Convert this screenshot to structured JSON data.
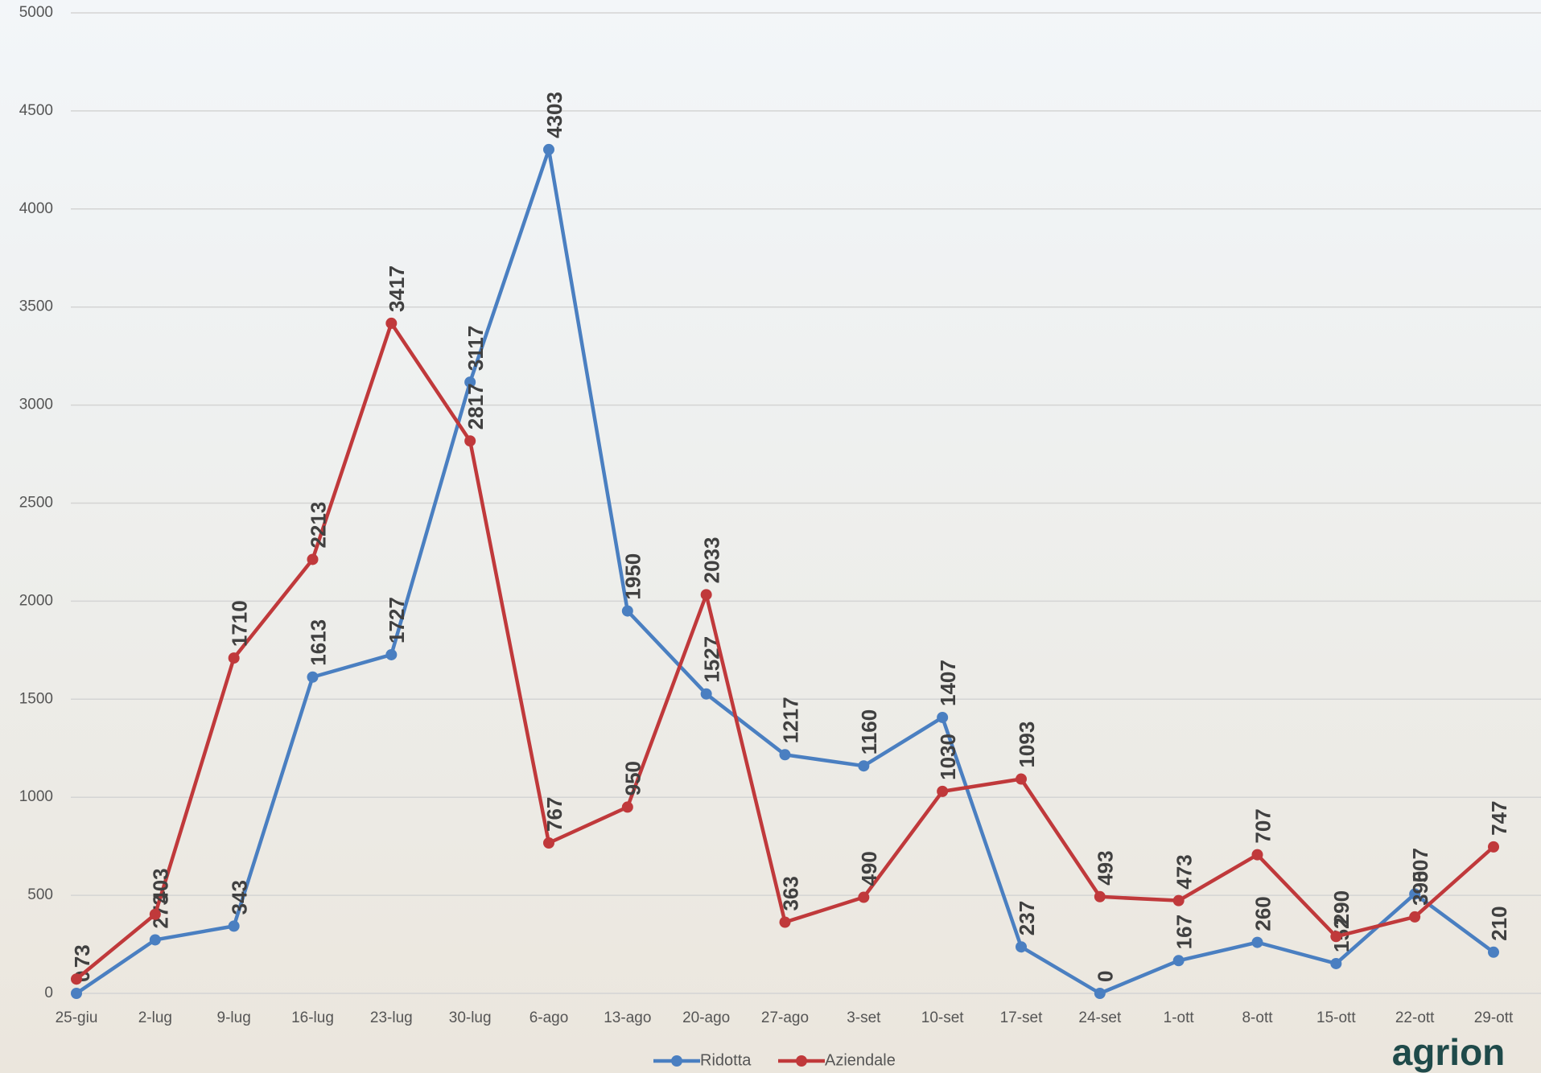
{
  "chart_data": {
    "type": "line",
    "categories": [
      "25-giu",
      "2-lug",
      "9-lug",
      "16-lug",
      "23-lug",
      "30-lug",
      "6-ago",
      "13-ago",
      "20-ago",
      "27-ago",
      "3-set",
      "10-set",
      "17-set",
      "24-set",
      "1-ott",
      "8-ott",
      "15-ott",
      "22-ott",
      "29-ott"
    ],
    "series": [
      {
        "name": "Ridotta",
        "color": "#4a7fc1",
        "values": [
          0,
          273,
          343,
          1613,
          1727,
          3117,
          4303,
          1950,
          1527,
          1217,
          1160,
          1407,
          237,
          0,
          167,
          260,
          152,
          507,
          210
        ]
      },
      {
        "name": "Aziendale",
        "color": "#c0393b",
        "values": [
          73,
          403,
          1710,
          2213,
          3417,
          2817,
          767,
          950,
          2033,
          363,
          490,
          1030,
          1093,
          493,
          473,
          707,
          290,
          390,
          747
        ]
      }
    ],
    "ylim": [
      0,
      5000
    ],
    "yticks": [
      0,
      500,
      1000,
      1500,
      2000,
      2500,
      3000,
      3500,
      4000,
      4500,
      5000
    ],
    "grid": true,
    "legend": "bottom",
    "logo": "agrion"
  }
}
